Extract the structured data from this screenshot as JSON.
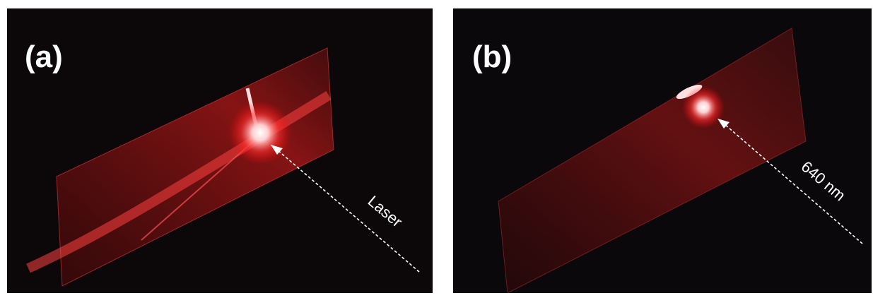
{
  "panels": [
    {
      "label": "(a)",
      "annotation": "Laser"
    },
    {
      "label": "(b)",
      "annotation": "640 nm"
    }
  ]
}
